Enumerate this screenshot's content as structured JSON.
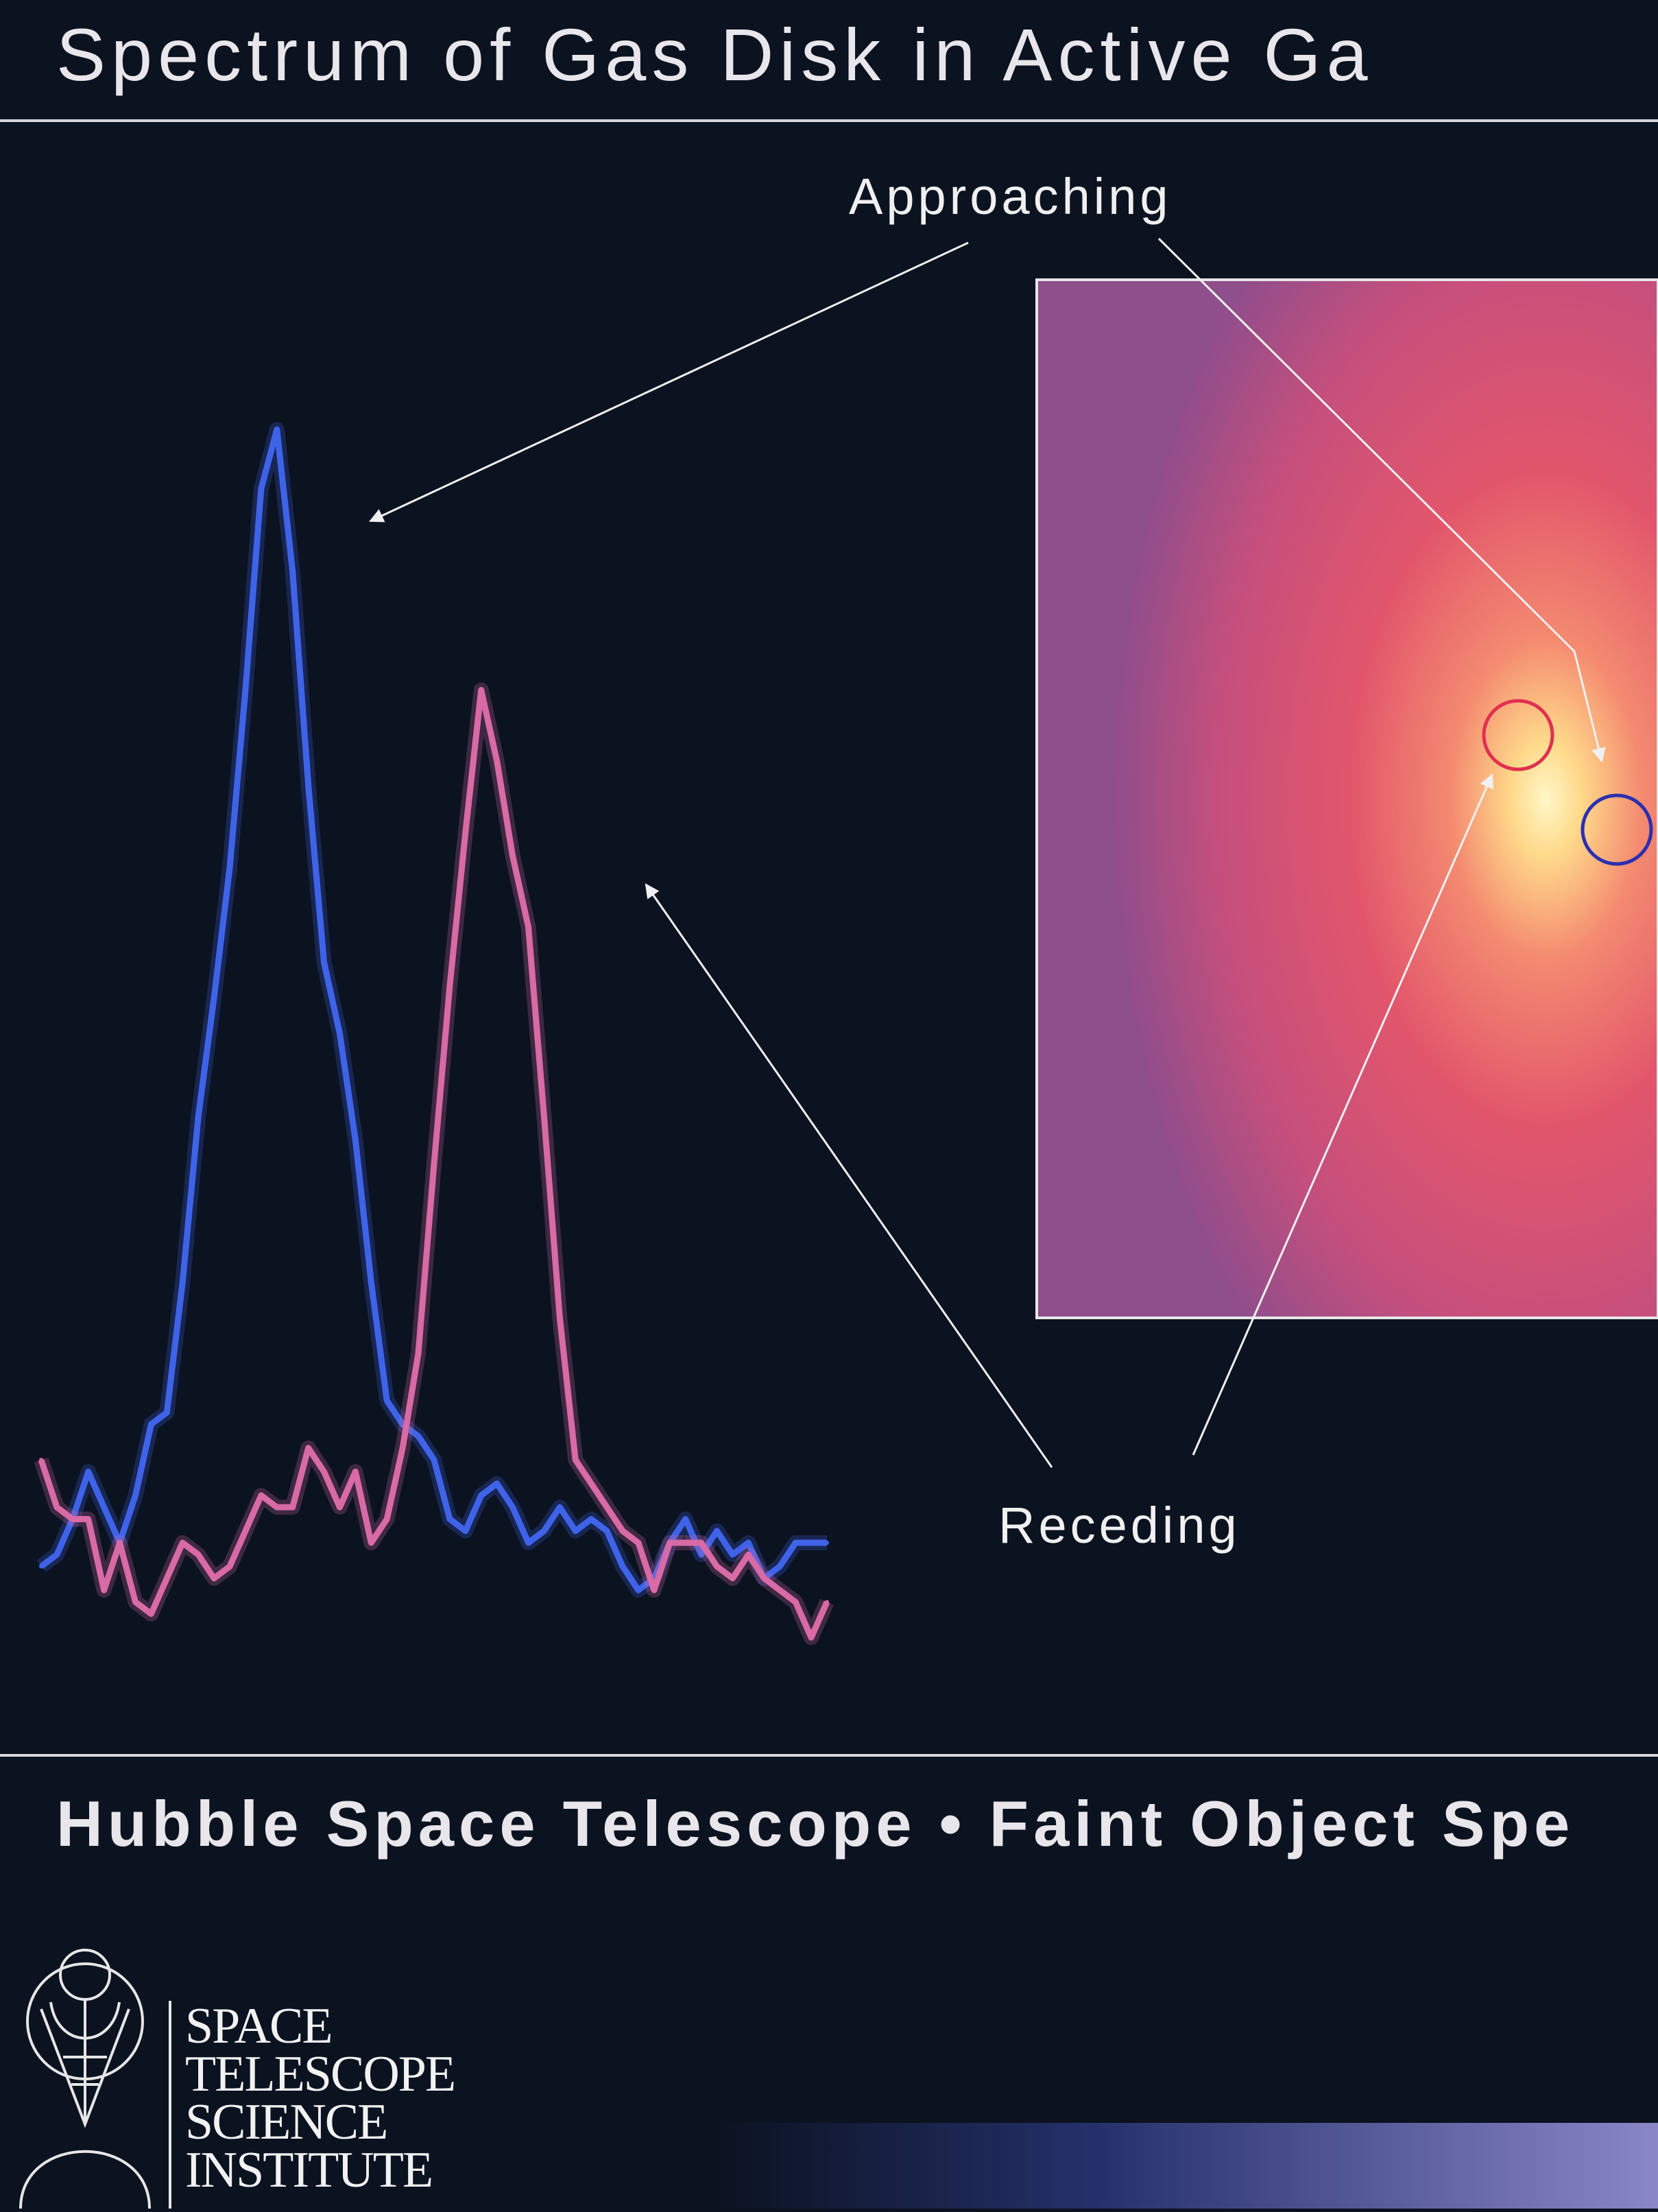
{
  "title": "Spectrum of Gas Disk in Active Ga",
  "subtitle": "Hubble Space Telescope • Faint Object Spe",
  "institution_lines": [
    "SPACE",
    "TELESCOPE",
    "SCIENCE",
    "INSTITUTE"
  ],
  "colors": {
    "background": "#0b1220",
    "approaching": "#3f63e8",
    "receding": "#d86aa6",
    "annotation": "#f0f0f0",
    "inset_warm": "#e0506a",
    "inset_hot": "#ffe89a"
  },
  "chart_data": {
    "type": "line",
    "title": "Spectrum of Gas Disk in Active Ga",
    "xlabel": "",
    "ylabel": "",
    "grid": false,
    "legend": "none",
    "annotations": [
      "Approaching",
      "Receding"
    ],
    "x": [
      0.0,
      0.02,
      0.04,
      0.06,
      0.08,
      0.1,
      0.12,
      0.14,
      0.16,
      0.18,
      0.2,
      0.22,
      0.24,
      0.26,
      0.28,
      0.3,
      0.32,
      0.34,
      0.36,
      0.38,
      0.4,
      0.42,
      0.44,
      0.46,
      0.48,
      0.5,
      0.52,
      0.54,
      0.56,
      0.58,
      0.6,
      0.62,
      0.64,
      0.66,
      0.68,
      0.7,
      0.72,
      0.74,
      0.76,
      0.78,
      0.8,
      0.82,
      0.84,
      0.86,
      0.88,
      0.9,
      0.92,
      0.94,
      0.96,
      0.98,
      1.0
    ],
    "series": [
      {
        "name": "Approaching",
        "values": [
          0.04,
          0.05,
          0.08,
          0.12,
          0.09,
          0.06,
          0.1,
          0.16,
          0.17,
          0.28,
          0.42,
          0.52,
          0.63,
          0.78,
          0.95,
          1.0,
          0.88,
          0.7,
          0.55,
          0.49,
          0.4,
          0.28,
          0.18,
          0.16,
          0.15,
          0.13,
          0.08,
          0.07,
          0.1,
          0.11,
          0.09,
          0.06,
          0.07,
          0.09,
          0.07,
          0.08,
          0.07,
          0.04,
          0.02,
          0.03,
          0.06,
          0.08,
          0.05,
          0.07,
          0.05,
          0.06,
          0.03,
          0.04,
          0.06,
          0.06,
          0.06
        ]
      },
      {
        "name": "Receding",
        "values": [
          0.13,
          0.09,
          0.08,
          0.08,
          0.02,
          0.06,
          0.01,
          0.0,
          0.03,
          0.06,
          0.05,
          0.03,
          0.04,
          0.07,
          0.1,
          0.09,
          0.09,
          0.14,
          0.12,
          0.09,
          0.12,
          0.06,
          0.08,
          0.14,
          0.22,
          0.38,
          0.53,
          0.66,
          0.78,
          0.72,
          0.64,
          0.58,
          0.42,
          0.25,
          0.13,
          0.11,
          0.09,
          0.07,
          0.06,
          0.02,
          0.06,
          0.06,
          0.06,
          0.04,
          0.03,
          0.05,
          0.03,
          0.02,
          0.01,
          -0.02,
          0.01
        ]
      }
    ],
    "xlim": [
      0,
      1
    ],
    "ylim": [
      -0.05,
      1.05
    ]
  }
}
